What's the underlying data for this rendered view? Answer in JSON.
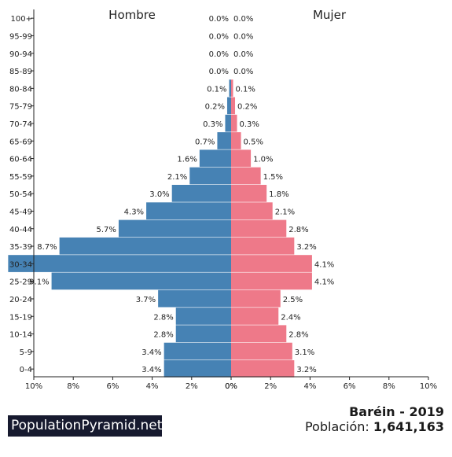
{
  "chart_data": {
    "type": "bar",
    "orientation": "horizontal-pyramid",
    "left_title": "Hombre",
    "right_title": "Mujer",
    "categories": [
      "0-4",
      "5-9",
      "10-14",
      "15-19",
      "20-24",
      "25-29",
      "30-34",
      "35-39",
      "40-44",
      "45-49",
      "50-54",
      "55-59",
      "60-64",
      "65-69",
      "70-74",
      "75-79",
      "80-84",
      "85-89",
      "90-94",
      "95-99",
      "100+"
    ],
    "series": [
      {
        "name": "Hombre",
        "color": "#4682b4",
        "values": [
          3.4,
          3.4,
          2.8,
          2.8,
          3.7,
          9.1,
          11.3,
          8.7,
          5.7,
          4.3,
          3.0,
          2.1,
          1.6,
          0.7,
          0.3,
          0.2,
          0.1,
          0.0,
          0.0,
          0.0,
          0.0
        ],
        "labels": [
          "3.4%",
          "3.4%",
          "2.8%",
          "2.8%",
          "3.7%",
          "9.1%",
          "",
          "8.7%",
          "5.7%",
          "4.3%",
          "3.0%",
          "2.1%",
          "1.6%",
          "0.7%",
          "0.3%",
          "0.2%",
          "0.1%",
          "0.0%",
          "0.0%",
          "0.0%",
          "0.0%"
        ]
      },
      {
        "name": "Mujer",
        "color": "#ee7989",
        "values": [
          3.2,
          3.1,
          2.8,
          2.4,
          2.5,
          4.1,
          4.1,
          3.2,
          2.8,
          2.1,
          1.8,
          1.5,
          1.0,
          0.5,
          0.3,
          0.2,
          0.1,
          0.0,
          0.0,
          0.0,
          0.0
        ],
        "labels": [
          "3.2%",
          "3.1%",
          "2.8%",
          "2.4%",
          "2.5%",
          "4.1%",
          "4.1%",
          "3.2%",
          "2.8%",
          "2.1%",
          "1.8%",
          "1.5%",
          "1.0%",
          "0.5%",
          "0.3%",
          "0.2%",
          "0.1%",
          "0.0%",
          "0.0%",
          "0.0%",
          "0.0%"
        ]
      }
    ],
    "x_ticks_left": [
      "10%",
      "8%",
      "6%",
      "4%",
      "2%",
      "0%"
    ],
    "x_ticks_right": [
      "0%",
      "2%",
      "4%",
      "6%",
      "8%",
      "10%"
    ],
    "xlim": [
      0,
      10
    ]
  },
  "footer": {
    "brand": "PopulationPyramid.net",
    "country_year": "Baréin - 2019",
    "population_label": "Población:",
    "population_value": "1,641,163"
  }
}
